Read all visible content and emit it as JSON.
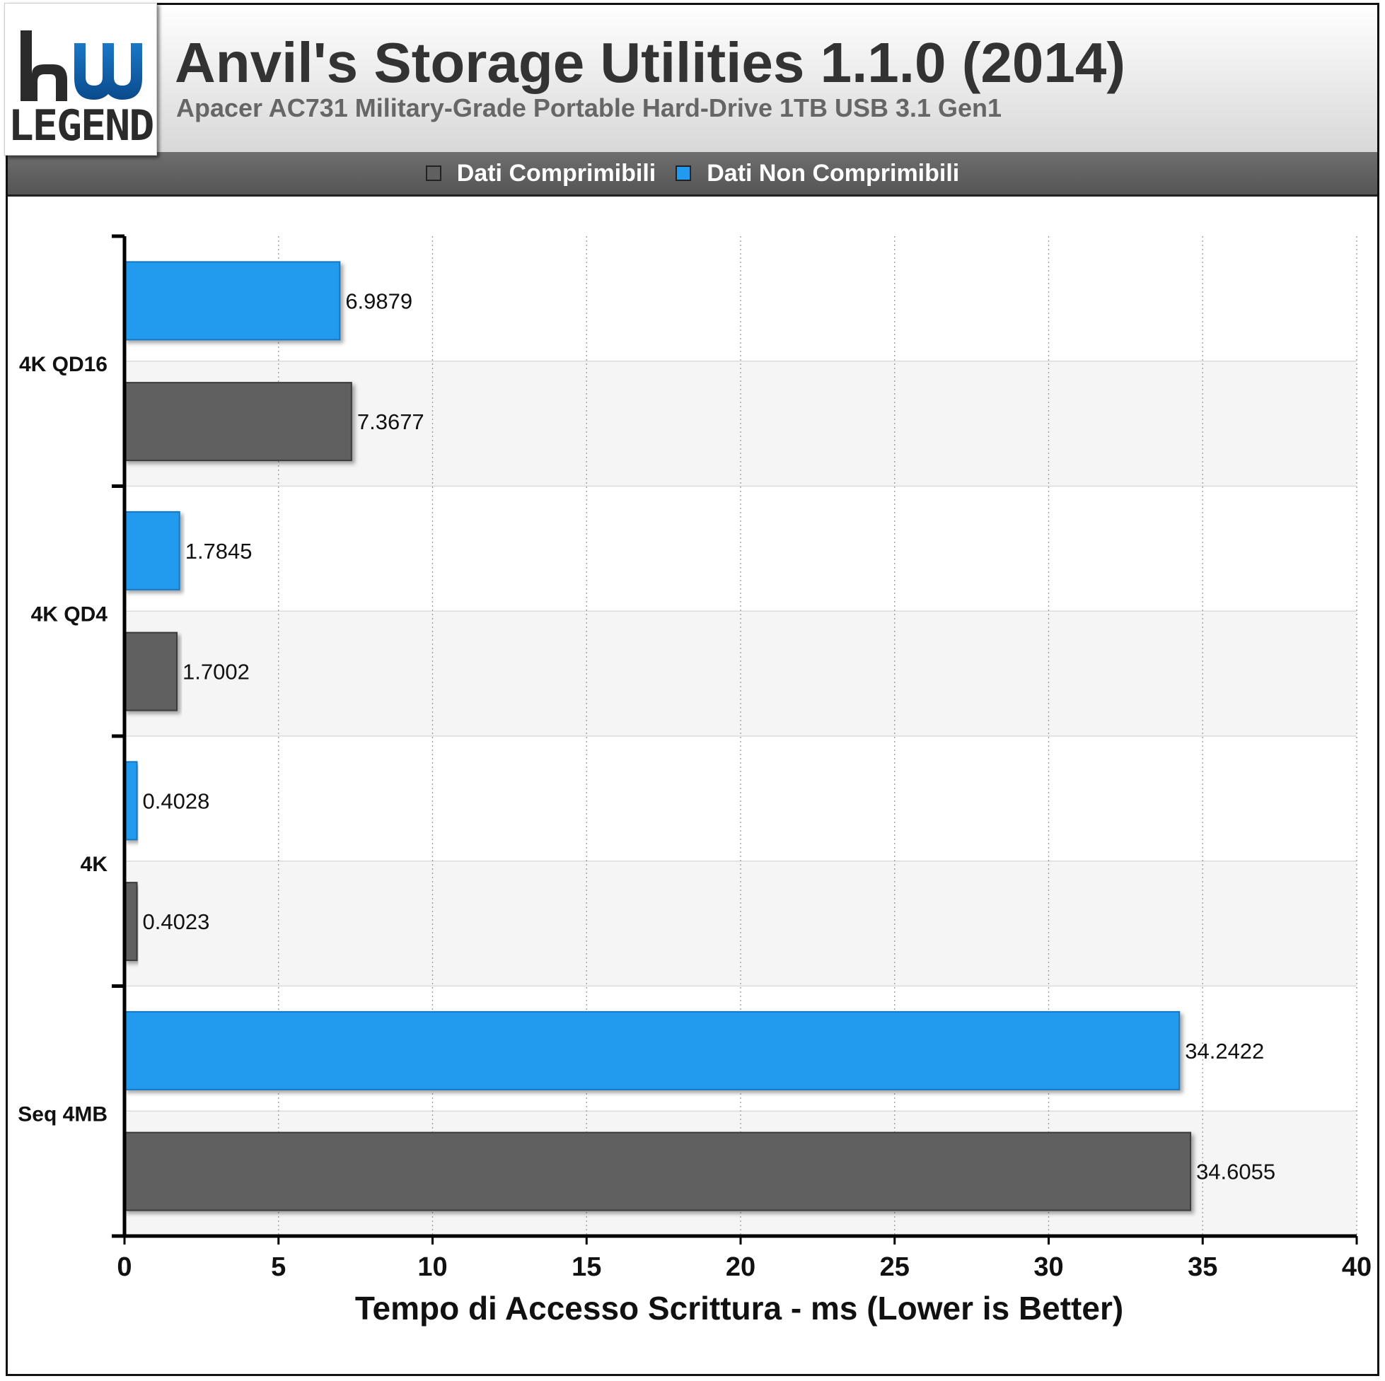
{
  "header": {
    "logo_text": "LEGEND",
    "title": "Anvil's Storage Utilities 1.1.0 (2014)",
    "subtitle": "Apacer AC731 Military-Grade Portable Hard-Drive 1TB USB 3.1 Gen1"
  },
  "colors": {
    "compressible": "#606060",
    "incompressible": "#219BEF"
  },
  "chart_data": {
    "type": "bar",
    "orientation": "horizontal",
    "categories": [
      "4K QD16",
      "4K QD4",
      "4K",
      "Seq 4MB"
    ],
    "series": [
      {
        "name": "Dati Comprimibili",
        "values": [
          7.3677,
          1.7002,
          0.4023,
          34.6055
        ]
      },
      {
        "name": "Dati Non Comprimibili",
        "values": [
          6.9879,
          1.7845,
          0.4028,
          34.2422
        ]
      }
    ],
    "xlabel": "Tempo di Accesso Scrittura - ms (Lower is Better)",
    "ylabel": "",
    "xlim": [
      0,
      40
    ],
    "xticks": [
      0,
      5,
      10,
      15,
      20,
      25,
      30,
      35,
      40
    ],
    "grid": true,
    "legend": "top"
  }
}
